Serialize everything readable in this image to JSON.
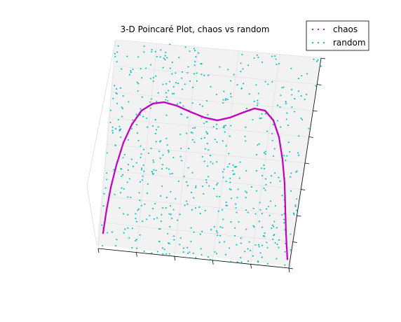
{
  "chart_data": {
    "type": "scatter",
    "title": "3-D Poincaré Plot, chaos vs random",
    "dimensions": 3,
    "xlabel": "",
    "ylabel": "",
    "zlabel": "",
    "grid": true,
    "legend": {
      "placement": "top-right",
      "entries": [
        "chaos",
        "random"
      ]
    },
    "axis_range": [
      0,
      1
    ],
    "series": [
      {
        "name": "chaos",
        "color": "#bf00bf",
        "marker": "dot",
        "description_points": [
          {
            "x": 0.0,
            "y": 0.0,
            "z": 0.0
          },
          {
            "x": 0.1,
            "y": 0.36,
            "z": 0.36
          },
          {
            "x": 0.2,
            "y": 0.64,
            "z": 0.64
          },
          {
            "x": 0.3,
            "y": 0.84,
            "z": 0.84
          },
          {
            "x": 0.4,
            "y": 0.96,
            "z": 0.96
          },
          {
            "x": 0.5,
            "y": 1.0,
            "z": 1.0
          },
          {
            "x": 0.6,
            "y": 0.96,
            "z": 0.96
          },
          {
            "x": 0.7,
            "y": 0.84,
            "z": 0.84
          },
          {
            "x": 0.8,
            "y": 0.64,
            "z": 0.64
          },
          {
            "x": 0.9,
            "y": 0.36,
            "z": 0.36
          },
          {
            "x": 1.0,
            "y": 0.0,
            "z": 0.0
          }
        ]
      },
      {
        "name": "random",
        "color": "#00bfbf",
        "marker": "dot",
        "count": 1000
      }
    ]
  }
}
